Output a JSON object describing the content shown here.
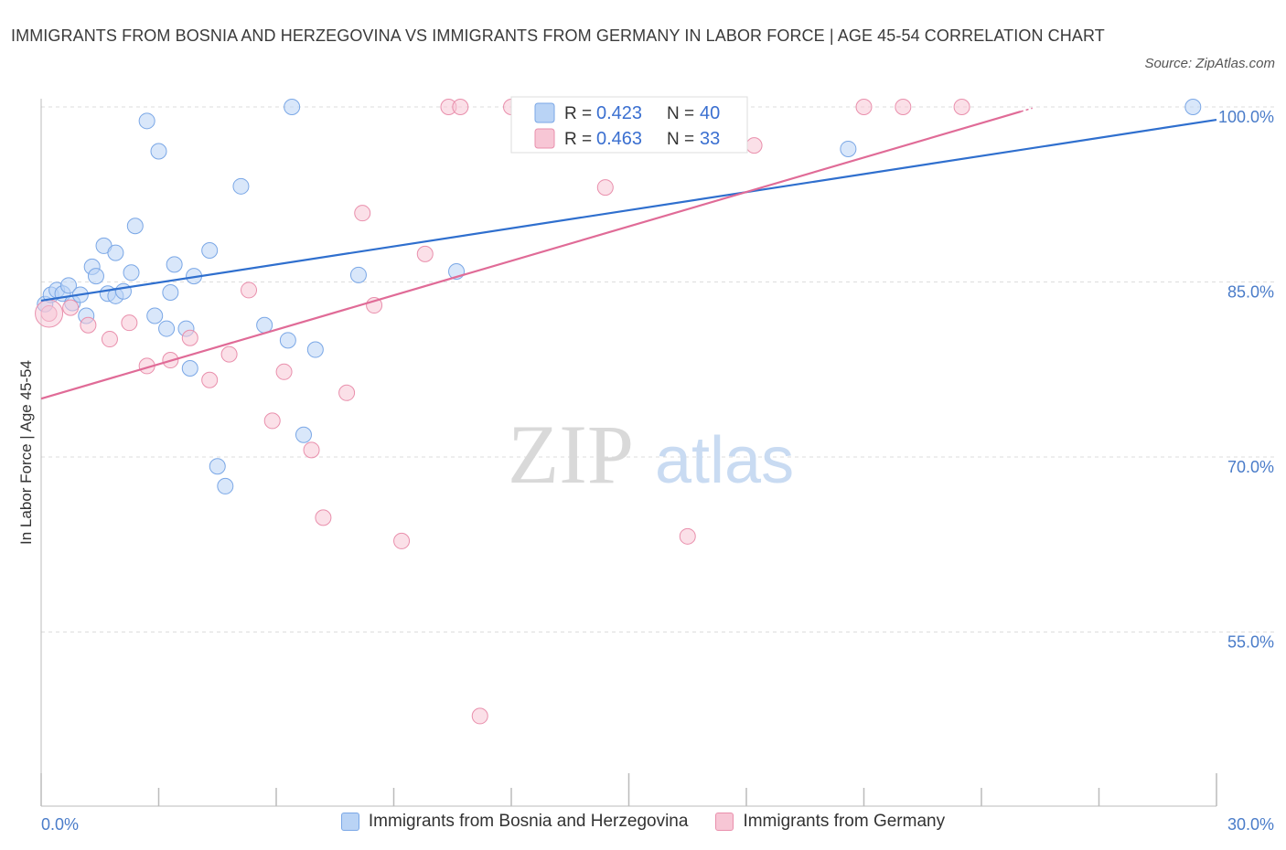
{
  "title": "IMMIGRANTS FROM BOSNIA AND HERZEGOVINA VS IMMIGRANTS FROM GERMANY IN LABOR FORCE | AGE 45-54 CORRELATION CHART",
  "source": "Source: ZipAtlas.com",
  "watermark": {
    "zip": "ZIP",
    "atlas": "atlas"
  },
  "colors": {
    "blue_fill": "#b9d3f5",
    "blue_stroke": "#7aa7e6",
    "blue_line": "#2f6fce",
    "pink_fill": "#f7c6d5",
    "pink_stroke": "#e98fac",
    "pink_line": "#e06b97",
    "grid": "#dddddd",
    "axis_text": "#4a7cc9"
  },
  "legend": {
    "r_label": "R =",
    "n_label": "N =",
    "entries": [
      {
        "r": "0.423",
        "n": "40"
      },
      {
        "r": "0.463",
        "n": "33"
      }
    ]
  },
  "chart_data": {
    "type": "scatter",
    "xlabel": "",
    "ylabel": "In Labor Force | Age 45-54",
    "xlim": [
      0,
      30
    ],
    "ylim": [
      40,
      100
    ],
    "x_tick_labels": [
      "0.0%",
      "30.0%"
    ],
    "y_ticks": [
      100,
      85,
      70,
      55
    ],
    "y_tick_labels": [
      "100.0%",
      "85.0%",
      "70.0%",
      "55.0%"
    ],
    "grid": true,
    "series": [
      {
        "name": "Immigrants from Bosnia and Herzegovina",
        "color": "#7aa7e6",
        "trend": {
          "x": [
            0,
            30
          ],
          "y": [
            83.4,
            98.9
          ]
        },
        "points": [
          [
            0.1,
            83.1
          ],
          [
            0.25,
            83.9
          ],
          [
            0.4,
            84.3
          ],
          [
            0.55,
            84.0
          ],
          [
            0.7,
            84.7
          ],
          [
            0.8,
            83.2
          ],
          [
            1.0,
            83.9
          ],
          [
            1.15,
            82.1
          ],
          [
            1.3,
            86.3
          ],
          [
            1.4,
            85.5
          ],
          [
            1.6,
            88.1
          ],
          [
            1.7,
            84.0
          ],
          [
            1.9,
            87.5
          ],
          [
            1.9,
            83.8
          ],
          [
            2.1,
            84.2
          ],
          [
            2.3,
            85.8
          ],
          [
            2.4,
            89.8
          ],
          [
            2.7,
            98.8
          ],
          [
            2.9,
            82.1
          ],
          [
            3.0,
            96.2
          ],
          [
            3.2,
            81.0
          ],
          [
            3.3,
            84.1
          ],
          [
            3.4,
            86.5
          ],
          [
            3.7,
            81.0
          ],
          [
            3.8,
            77.6
          ],
          [
            3.9,
            85.5
          ],
          [
            4.3,
            87.7
          ],
          [
            4.5,
            69.2
          ],
          [
            4.7,
            67.5
          ],
          [
            5.1,
            93.2
          ],
          [
            5.7,
            81.3
          ],
          [
            6.3,
            80.0
          ],
          [
            6.4,
            100.0
          ],
          [
            6.7,
            71.9
          ],
          [
            7.0,
            79.2
          ],
          [
            8.1,
            85.6
          ],
          [
            10.6,
            85.9
          ],
          [
            15.5,
            100.0
          ],
          [
            20.6,
            96.4
          ],
          [
            29.4,
            100.0
          ]
        ]
      },
      {
        "name": "Immigrants from Germany",
        "color": "#e98fac",
        "trend": {
          "x": [
            0,
            25
          ],
          "y": [
            75.0,
            99.6
          ]
        },
        "points": [
          [
            0.2,
            82.3
          ],
          [
            0.75,
            82.8
          ],
          [
            1.2,
            81.3
          ],
          [
            1.75,
            80.1
          ],
          [
            2.25,
            81.5
          ],
          [
            2.7,
            77.8
          ],
          [
            3.3,
            78.3
          ],
          [
            3.8,
            80.2
          ],
          [
            4.3,
            76.6
          ],
          [
            4.8,
            78.8
          ],
          [
            5.3,
            84.3
          ],
          [
            5.9,
            73.1
          ],
          [
            6.2,
            77.3
          ],
          [
            6.9,
            70.6
          ],
          [
            7.2,
            64.8
          ],
          [
            7.8,
            75.5
          ],
          [
            8.2,
            90.9
          ],
          [
            8.5,
            83.0
          ],
          [
            9.2,
            62.8
          ],
          [
            9.8,
            87.4
          ],
          [
            10.4,
            100.0
          ],
          [
            10.7,
            100.0
          ],
          [
            11.2,
            47.8
          ],
          [
            12.0,
            100.0
          ],
          [
            12.8,
            100.0
          ],
          [
            13.8,
            100.0
          ],
          [
            14.4,
            93.1
          ],
          [
            15.7,
            100.0
          ],
          [
            16.5,
            63.2
          ],
          [
            18.2,
            96.7
          ],
          [
            21.0,
            100.0
          ],
          [
            22.0,
            100.0
          ],
          [
            23.5,
            100.0
          ]
        ]
      }
    ]
  }
}
